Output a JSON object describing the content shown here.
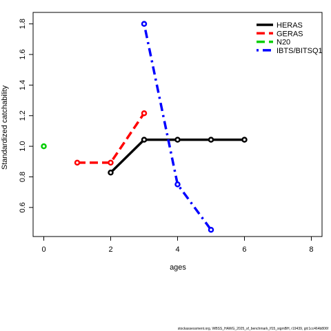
{
  "chart_data": {
    "type": "line",
    "xlabel": "ages",
    "ylabel": "Standardized catchability",
    "x": [
      0,
      1,
      2,
      3,
      4,
      5,
      6
    ],
    "series": [
      {
        "name": "HERAS",
        "color": "#000000",
        "linestyle": "solid",
        "values": [
          null,
          null,
          0.828,
          1.043,
          1.043,
          1.043,
          1.043
        ]
      },
      {
        "name": "GERAS",
        "color": "#ff0000",
        "linestyle": "dashed",
        "values": [
          null,
          0.893,
          0.893,
          1.216,
          null,
          null,
          null
        ]
      },
      {
        "name": "N20",
        "color": "#00cd00",
        "linestyle": "dashed",
        "values": [
          1.0,
          null,
          null,
          null,
          null,
          null,
          null
        ]
      },
      {
        "name": "IBTS/BITSQ1",
        "color": "#0000ff",
        "linestyle": "dotdash",
        "values": [
          null,
          null,
          null,
          1.8,
          0.751,
          0.454,
          null
        ]
      }
    ],
    "xlim": [
      -0.32,
      8.32
    ],
    "xticks": [
      0,
      2,
      4,
      6,
      8
    ],
    "ylim": [
      0.41,
      1.875
    ],
    "yticks": [
      0.6,
      0.8,
      {
        "value": 1,
        "label": "1.0"
      },
      1.2,
      1.4,
      1.6,
      1.8
    ],
    "legend": "top-right",
    "footnote": "stockassessment.org, WBSS_HAWG_2025_sf_benchmark_lf15_sigmBH, r19439, git:1cc464b806f"
  }
}
